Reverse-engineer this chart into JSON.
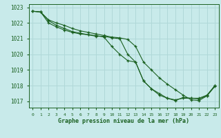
{
  "title": "Graphe pression niveau de la mer (hPa)",
  "background_color": "#c8eaea",
  "grid_color": "#b0d8d8",
  "line_color": "#1a6020",
  "xlim": [
    -0.5,
    23.5
  ],
  "ylim": [
    1016.6,
    1023.2
  ],
  "yticks": [
    1017,
    1018,
    1019,
    1020,
    1021,
    1022,
    1023
  ],
  "xticks": [
    0,
    1,
    2,
    3,
    4,
    5,
    6,
    7,
    8,
    9,
    10,
    11,
    12,
    13,
    14,
    15,
    16,
    17,
    18,
    19,
    20,
    21,
    22,
    23
  ],
  "series1_x": [
    0,
    1,
    2,
    3,
    4,
    5,
    6,
    7,
    8,
    9,
    10,
    11,
    12,
    13,
    14,
    15,
    16,
    17,
    18,
    19,
    20,
    21,
    22,
    23
  ],
  "series1_y": [
    1022.75,
    1022.7,
    1022.15,
    1021.85,
    1021.65,
    1021.45,
    1021.35,
    1021.25,
    1021.15,
    1021.15,
    1021.05,
    1021.0,
    1020.0,
    1019.5,
    1018.3,
    1017.8,
    1017.5,
    1017.2,
    1017.1,
    1017.2,
    1017.2,
    1017.2,
    1017.4,
    1018.0
  ],
  "series2_x": [
    0,
    1,
    2,
    3,
    4,
    5,
    6,
    7,
    8,
    9,
    10,
    11,
    12,
    13,
    14,
    15,
    16,
    17,
    18,
    19,
    20,
    21,
    22,
    23
  ],
  "series2_y": [
    1022.75,
    1022.7,
    1022.0,
    1021.75,
    1021.55,
    1021.4,
    1021.3,
    1021.25,
    1021.2,
    1021.1,
    1020.5,
    1020.0,
    1019.6,
    1019.5,
    1018.3,
    1017.8,
    1017.4,
    1017.2,
    1017.05,
    1017.25,
    1017.2,
    1017.15,
    1017.35,
    1018.0
  ],
  "series3_x": [
    0,
    1,
    2,
    3,
    4,
    5,
    6,
    7,
    8,
    9,
    10,
    11,
    12,
    13,
    14,
    15,
    16,
    17,
    18,
    19,
    20,
    21,
    22,
    23
  ],
  "series3_y": [
    1022.75,
    1022.7,
    1022.2,
    1022.0,
    1021.85,
    1021.65,
    1021.5,
    1021.4,
    1021.3,
    1021.2,
    1021.1,
    1021.05,
    1020.95,
    1020.5,
    1019.5,
    1019.0,
    1018.5,
    1018.1,
    1017.75,
    1017.4,
    1017.1,
    1017.05,
    1017.35,
    1017.95
  ]
}
